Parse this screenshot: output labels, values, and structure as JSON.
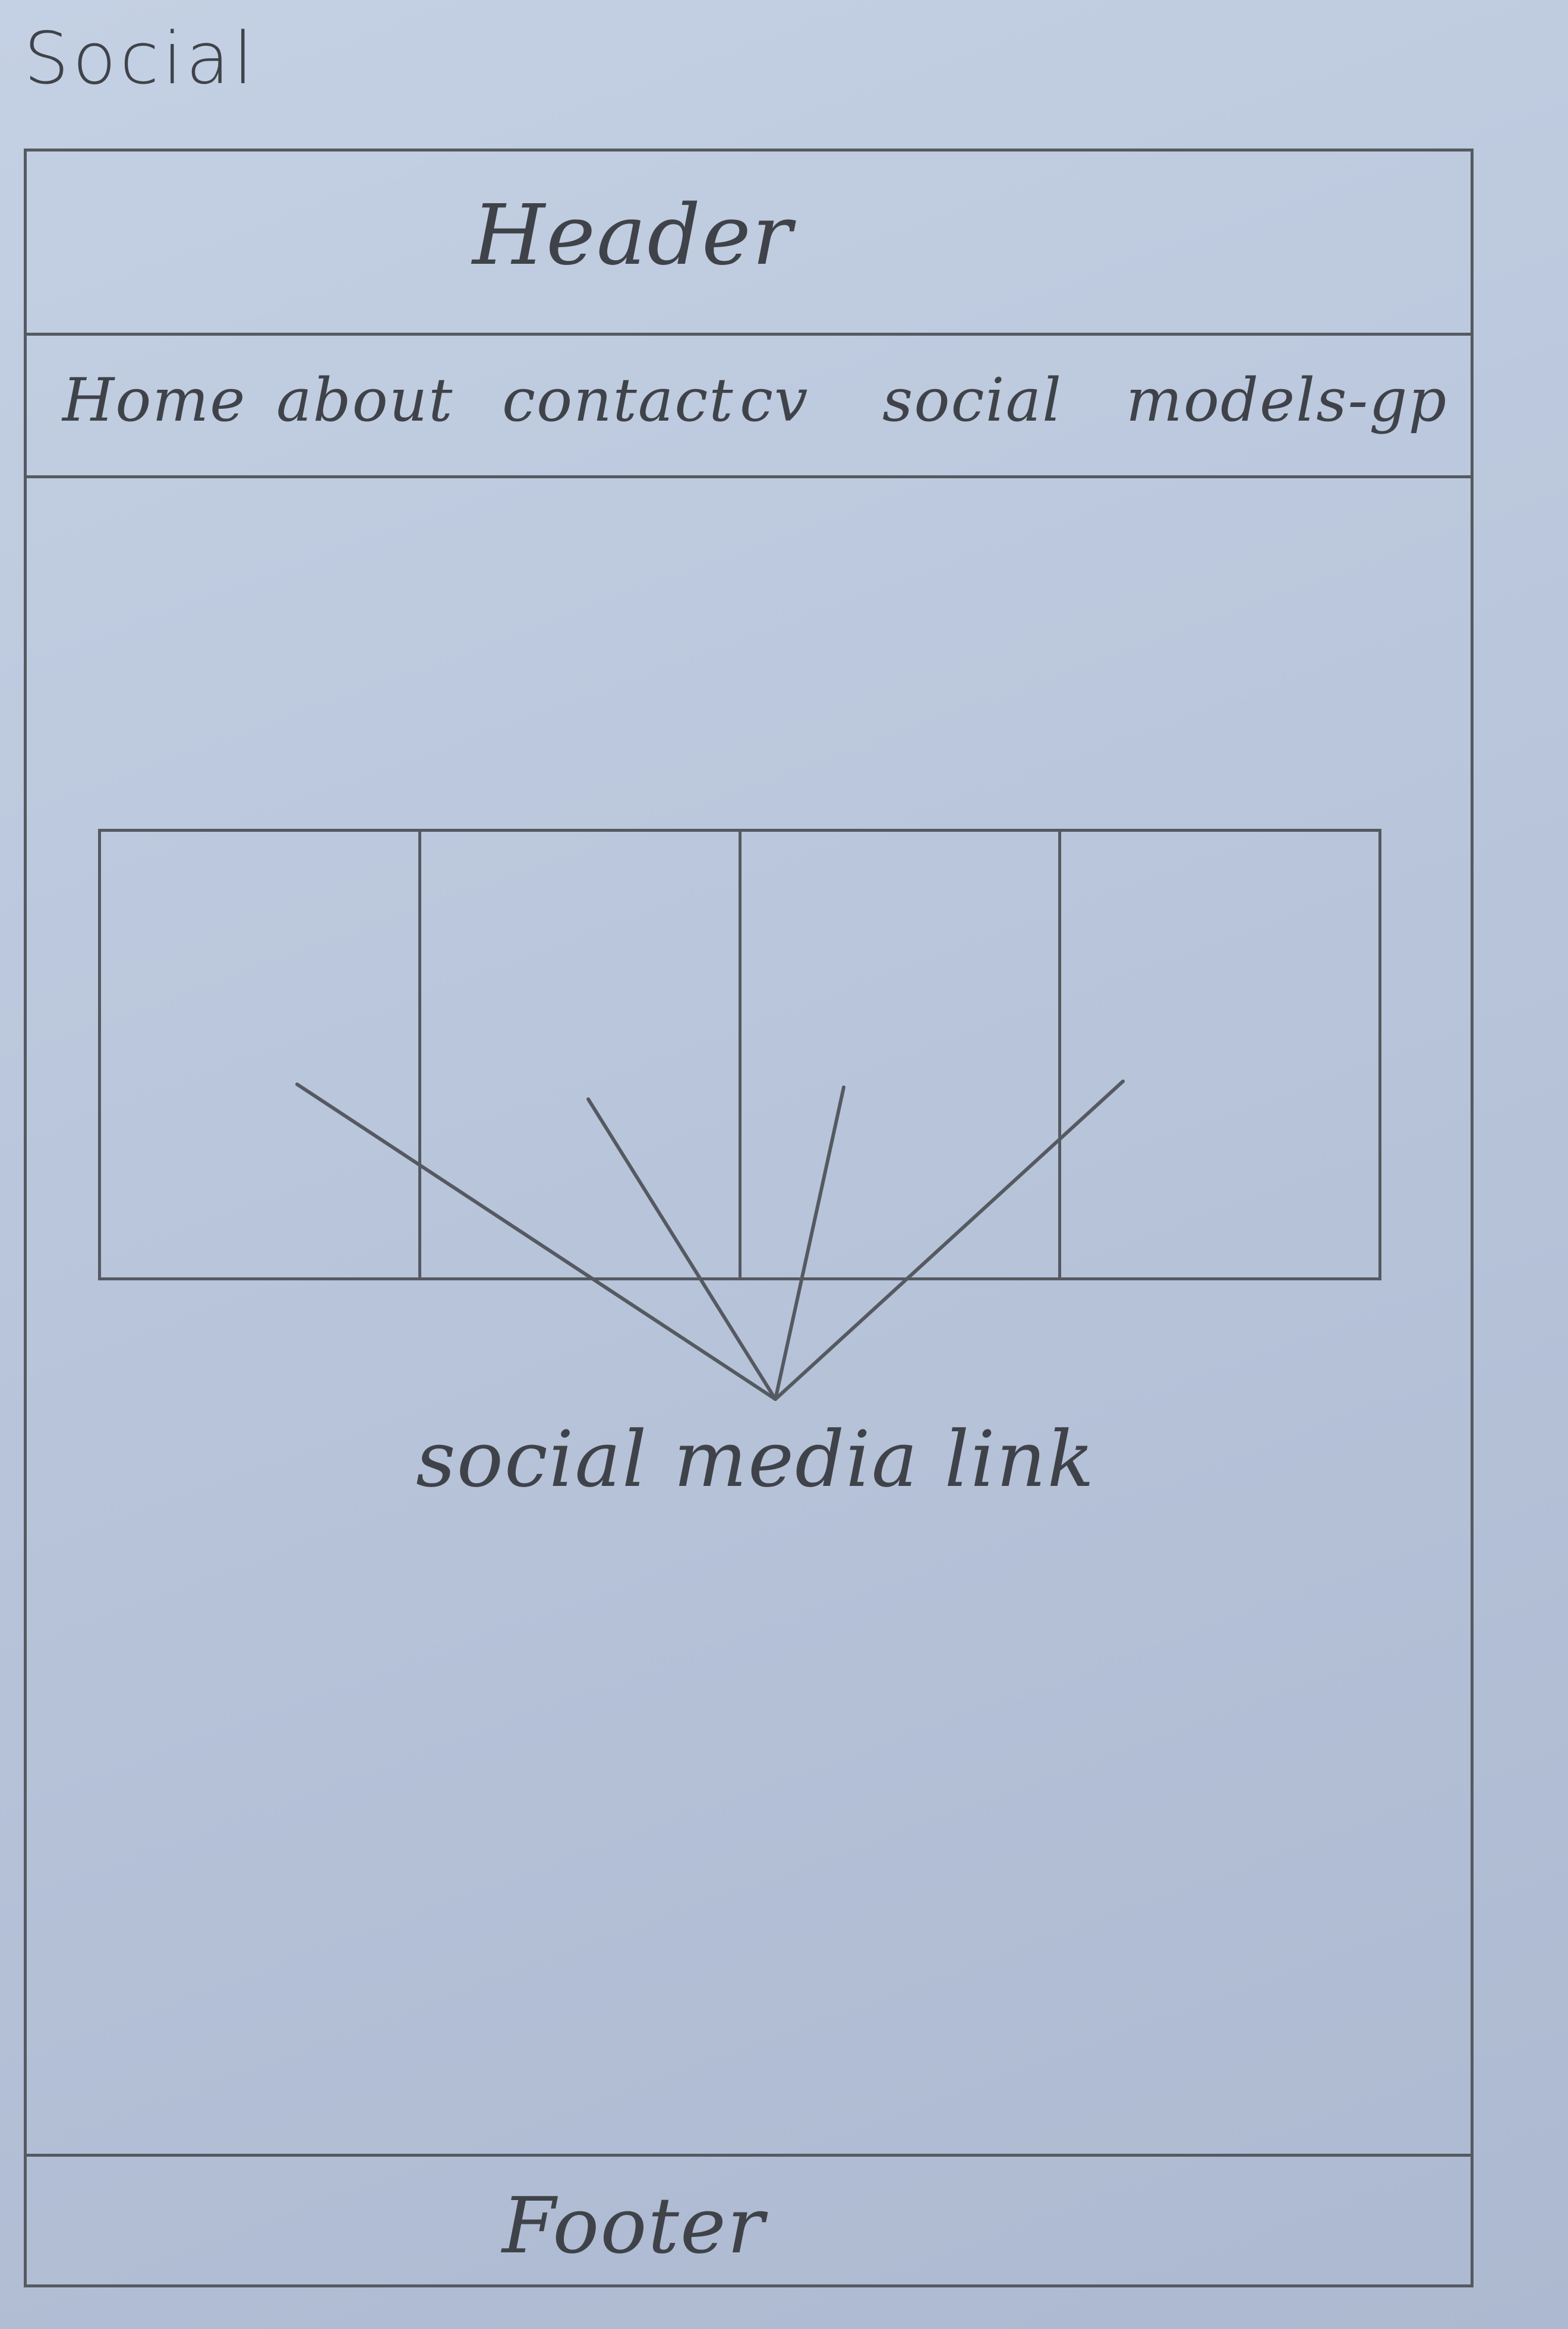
{
  "page": {
    "title": "Social"
  },
  "header": {
    "title": "Header"
  },
  "nav": {
    "items": [
      {
        "label": "Home"
      },
      {
        "label": "about"
      },
      {
        "label": "contact"
      },
      {
        "label": "cv"
      },
      {
        "label": "social"
      },
      {
        "label": "models-gp"
      }
    ]
  },
  "main": {
    "social_link_caption": "social media link",
    "social_slots": 4
  },
  "footer": {
    "title": "Footer"
  },
  "colors": {
    "paper": "#bfcadf",
    "pencil": "#555a61"
  }
}
